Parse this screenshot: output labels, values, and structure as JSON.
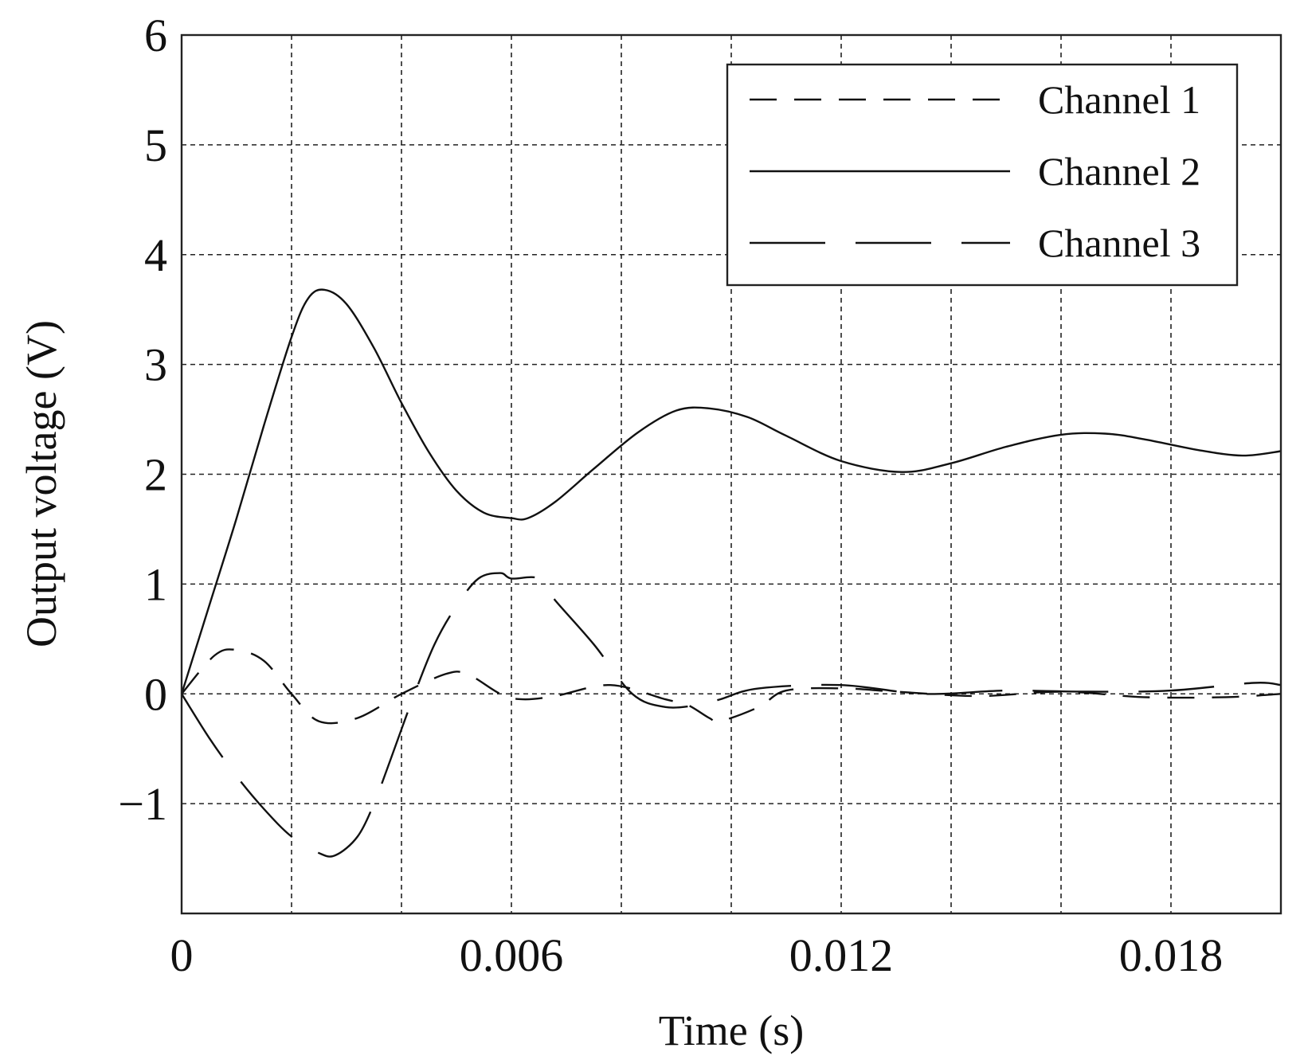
{
  "chart_data": {
    "type": "line",
    "title": "",
    "xlabel": "Time (s)",
    "ylabel": "Output voltage (V)",
    "xlim": [
      0,
      0.02
    ],
    "ylim": [
      -2,
      6
    ],
    "xticks": [
      0,
      0.006,
      0.012,
      0.018
    ],
    "xtick_labels": [
      "0",
      "0.006",
      "0.012",
      "0.018"
    ],
    "xgrid": [
      0.002,
      0.004,
      0.006,
      0.008,
      0.01,
      0.012,
      0.014,
      0.016,
      0.018
    ],
    "yticks": [
      -1,
      0,
      1,
      2,
      3,
      4,
      5,
      6
    ],
    "ytick_labels": [
      "−1",
      "0",
      "1",
      "2",
      "3",
      "4",
      "5",
      "6"
    ],
    "grid": true,
    "legend_position": "top-right",
    "series": [
      {
        "name": "Channel 1",
        "style": "dash-short",
        "x": [
          0,
          0.0006,
          0.001,
          0.0015,
          0.002,
          0.0025,
          0.0032,
          0.004,
          0.0048,
          0.0052,
          0.0058,
          0.0062,
          0.0068,
          0.0078,
          0.0088,
          0.0092,
          0.0096,
          0.0098,
          0.0105,
          0.011,
          0.012,
          0.013,
          0.0145,
          0.016,
          0.0175,
          0.019,
          0.02
        ],
        "y": [
          0,
          0.35,
          0.4,
          0.3,
          0.0,
          -0.25,
          -0.22,
          0.0,
          0.18,
          0.18,
          0.0,
          -0.05,
          -0.02,
          0.08,
          -0.05,
          -0.1,
          -0.22,
          -0.25,
          -0.12,
          0.03,
          0.05,
          0.02,
          -0.02,
          0.02,
          -0.03,
          -0.03,
          0.0
        ]
      },
      {
        "name": "Channel 2",
        "style": "solid",
        "x": [
          0,
          0.0005,
          0.001,
          0.0015,
          0.002,
          0.0023,
          0.0026,
          0.003,
          0.0035,
          0.004,
          0.0045,
          0.005,
          0.0055,
          0.006,
          0.0063,
          0.0068,
          0.0075,
          0.0083,
          0.009,
          0.0096,
          0.0103,
          0.011,
          0.012,
          0.0131,
          0.014,
          0.015,
          0.016,
          0.0168,
          0.0175,
          0.0185,
          0.0193,
          0.02
        ],
        "y": [
          0,
          0.8,
          1.6,
          2.45,
          3.25,
          3.6,
          3.68,
          3.55,
          3.15,
          2.65,
          2.2,
          1.85,
          1.65,
          1.6,
          1.6,
          1.75,
          2.05,
          2.38,
          2.58,
          2.6,
          2.52,
          2.35,
          2.12,
          2.02,
          2.1,
          2.25,
          2.36,
          2.37,
          2.32,
          2.22,
          2.17,
          2.21
        ]
      },
      {
        "name": "Channel 3",
        "style": "dash-long",
        "x": [
          0,
          0.0005,
          0.001,
          0.0015,
          0.002,
          0.0025,
          0.0028,
          0.0032,
          0.0035,
          0.0038,
          0.0042,
          0.0046,
          0.005,
          0.0054,
          0.0058,
          0.006,
          0.0065,
          0.0068,
          0.0075,
          0.0082,
          0.0088,
          0.0094,
          0.0098,
          0.0105,
          0.012,
          0.0135,
          0.015,
          0.0165,
          0.018,
          0.0195,
          0.02
        ],
        "y": [
          0,
          -0.4,
          -0.75,
          -1.05,
          -1.3,
          -1.45,
          -1.47,
          -1.3,
          -1.0,
          -0.6,
          -0.05,
          0.45,
          0.8,
          1.05,
          1.1,
          1.05,
          1.05,
          0.85,
          0.45,
          0.0,
          -0.12,
          -0.1,
          -0.05,
          0.05,
          0.08,
          0.0,
          0.03,
          0.02,
          0.03,
          0.1,
          0.08
        ]
      }
    ]
  }
}
